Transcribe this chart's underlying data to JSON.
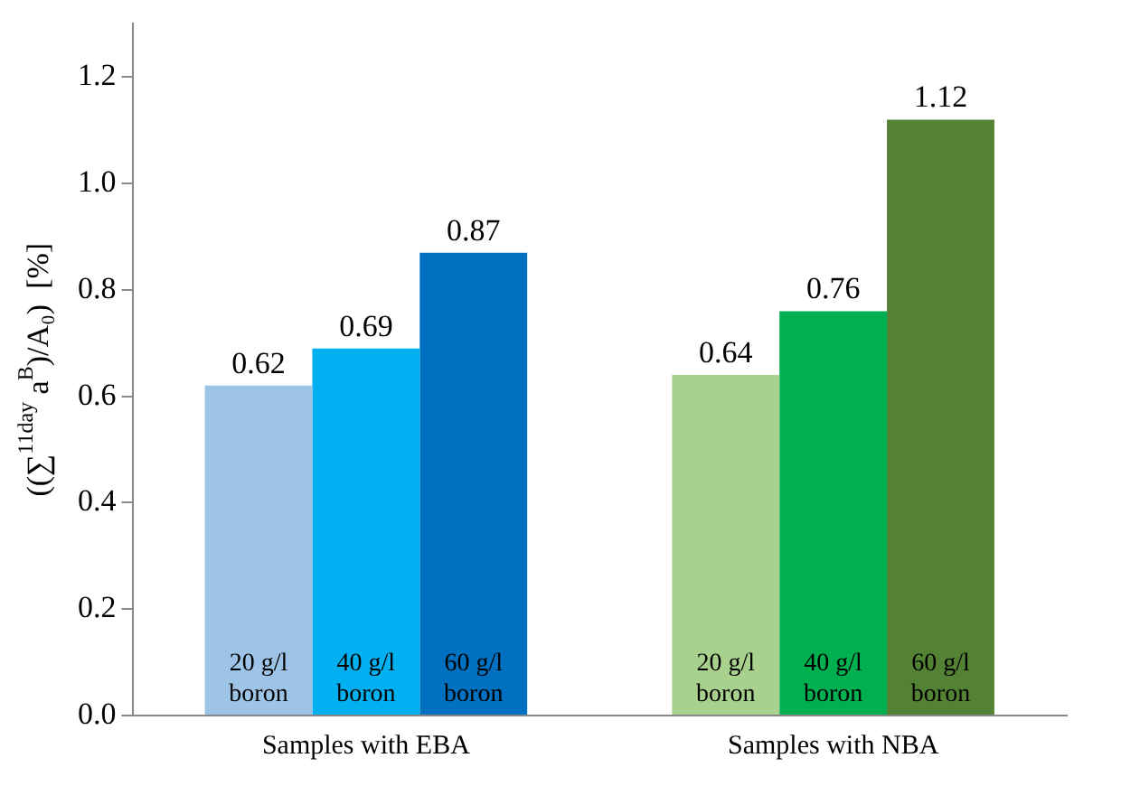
{
  "chart_data": {
    "type": "bar",
    "ylabel": "((∑$^{11day}$ a$^{B}$)/A₀)  [%]",
    "categories": [
      "Samples with EBA",
      "Samples with NBA"
    ],
    "series": [
      {
        "name": "20 g/l boron",
        "colors": [
          "#9dc3e6",
          "#a9d18e"
        ],
        "values": [
          0.62,
          0.64
        ]
      },
      {
        "name": "40 g/l boron",
        "colors": [
          "#00b0f0",
          "#00b050"
        ],
        "values": [
          0.69,
          0.76
        ]
      },
      {
        "name": "60 g/l boron",
        "colors": [
          "#0070c0",
          "#548235"
        ],
        "values": [
          0.87,
          1.12
        ]
      }
    ],
    "ylim": [
      0,
      1.3
    ],
    "yticks": [
      {
        "value": 0,
        "label": "0.0"
      },
      {
        "value": 0.2,
        "label": "0.2"
      },
      {
        "value": 0.4,
        "label": "0.4"
      },
      {
        "value": 0.6,
        "label": "0.6"
      },
      {
        "value": 0.8,
        "label": "0.8"
      },
      {
        "value": 1,
        "label": "1.0"
      },
      {
        "value": 1.2,
        "label": "1.2"
      }
    ],
    "grid": false,
    "legend": false,
    "data_labels": true
  }
}
